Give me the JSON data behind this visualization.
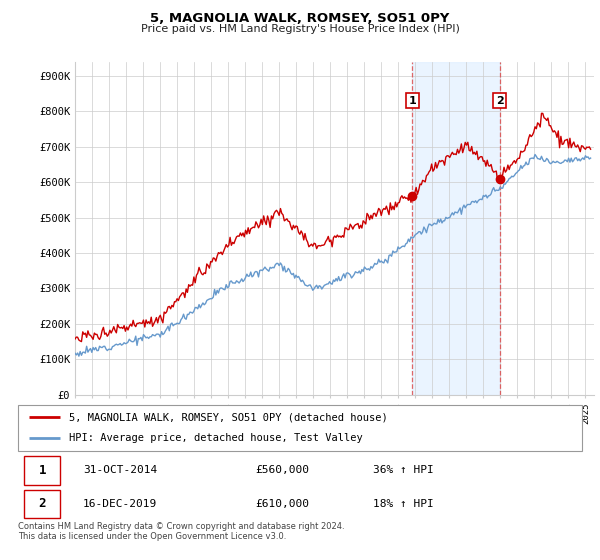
{
  "title": "5, MAGNOLIA WALK, ROMSEY, SO51 0PY",
  "subtitle": "Price paid vs. HM Land Registry's House Price Index (HPI)",
  "ylabel_ticks": [
    "£0",
    "£100K",
    "£200K",
    "£300K",
    "£400K",
    "£500K",
    "£600K",
    "£700K",
    "£800K",
    "£900K"
  ],
  "ytick_values": [
    0,
    100000,
    200000,
    300000,
    400000,
    500000,
    600000,
    700000,
    800000,
    900000
  ],
  "ylim": [
    0,
    940000
  ],
  "xlim_start": 1995.0,
  "xlim_end": 2025.5,
  "hpi_color": "#6699cc",
  "price_color": "#cc0000",
  "sale1_date": 2014.83,
  "sale1_price": 560000,
  "sale2_date": 2019.96,
  "sale2_price": 610000,
  "bg_shade_color": "#ddeeff",
  "legend_label1": "5, MAGNOLIA WALK, ROMSEY, SO51 0PY (detached house)",
  "legend_label2": "HPI: Average price, detached house, Test Valley",
  "table_row1_num": "1",
  "table_row1_date": "31-OCT-2014",
  "table_row1_price": "£560,000",
  "table_row1_hpi": "36% ↑ HPI",
  "table_row2_num": "2",
  "table_row2_date": "16-DEC-2019",
  "table_row2_price": "£610,000",
  "table_row2_hpi": "18% ↑ HPI",
  "footnote": "Contains HM Land Registry data © Crown copyright and database right 2024.\nThis data is licensed under the Open Government Licence v3.0."
}
